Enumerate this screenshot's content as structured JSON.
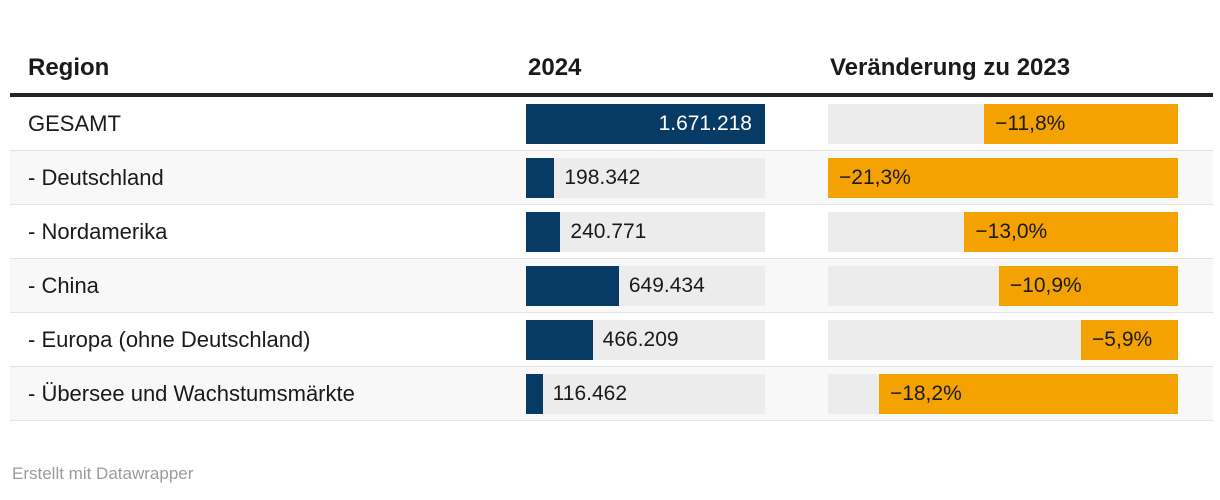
{
  "colors": {
    "navy": "#073a65",
    "orange": "#f3a202",
    "track": "#ececec",
    "stripe": "#f8f8f8",
    "rule": "#242424",
    "separator": "#e3e3e3",
    "text": "#1a1a1a",
    "muted": "#9b9b9b"
  },
  "header": {
    "region": "Region",
    "year": "2024",
    "change": "Veränderung zu 2023"
  },
  "rows": [
    {
      "region": "GESAMT",
      "value": 1671218,
      "value_label": "1.671.218",
      "change_pct": -11.8,
      "change_label": "−11,8%"
    },
    {
      "region": "- Deutschland",
      "value": 198342,
      "value_label": "198.342",
      "change_pct": -21.3,
      "change_label": "−21,3%"
    },
    {
      "region": "- Nordamerika",
      "value": 240771,
      "value_label": "240.771",
      "change_pct": -13.0,
      "change_label": "−13,0%"
    },
    {
      "region": "- China",
      "value": 649434,
      "value_label": "649.434",
      "change_pct": -10.9,
      "change_label": "−10,9%"
    },
    {
      "region": "- Europa (ohne Deutschland)",
      "value": 466209,
      "value_label": "466.209",
      "change_pct": -5.9,
      "change_label": "−5,9%"
    },
    {
      "region": "- Übersee und Wachstumsmärkte",
      "value": 116462,
      "value_label": "116.462",
      "change_pct": -18.2,
      "change_label": "−18,2%"
    }
  ],
  "footer": {
    "credit": "Erstellt mit Datawrapper"
  },
  "chart_data": {
    "type": "bar",
    "categories": [
      "GESAMT",
      "- Deutschland",
      "- Nordamerika",
      "- China",
      "- Europa (ohne Deutschland)",
      "- Übersee und Wachstumsmärkte"
    ],
    "series": [
      {
        "name": "2024",
        "values": [
          1671218,
          198342,
          240771,
          649434,
          466209,
          116462
        ]
      },
      {
        "name": "Veränderung zu 2023",
        "values": [
          -11.8,
          -21.3,
          -13.0,
          -10.9,
          -5.9,
          -18.2
        ]
      }
    ],
    "title": "",
    "xlabel": "Region",
    "ylabel": "",
    "value_bar_range": [
      0,
      1671218
    ],
    "change_bar_range_abs": [
      0,
      21.3
    ],
    "legend": "none",
    "grid": "off",
    "bar_orientation": "horizontal",
    "change_bars_anchored": "right"
  }
}
